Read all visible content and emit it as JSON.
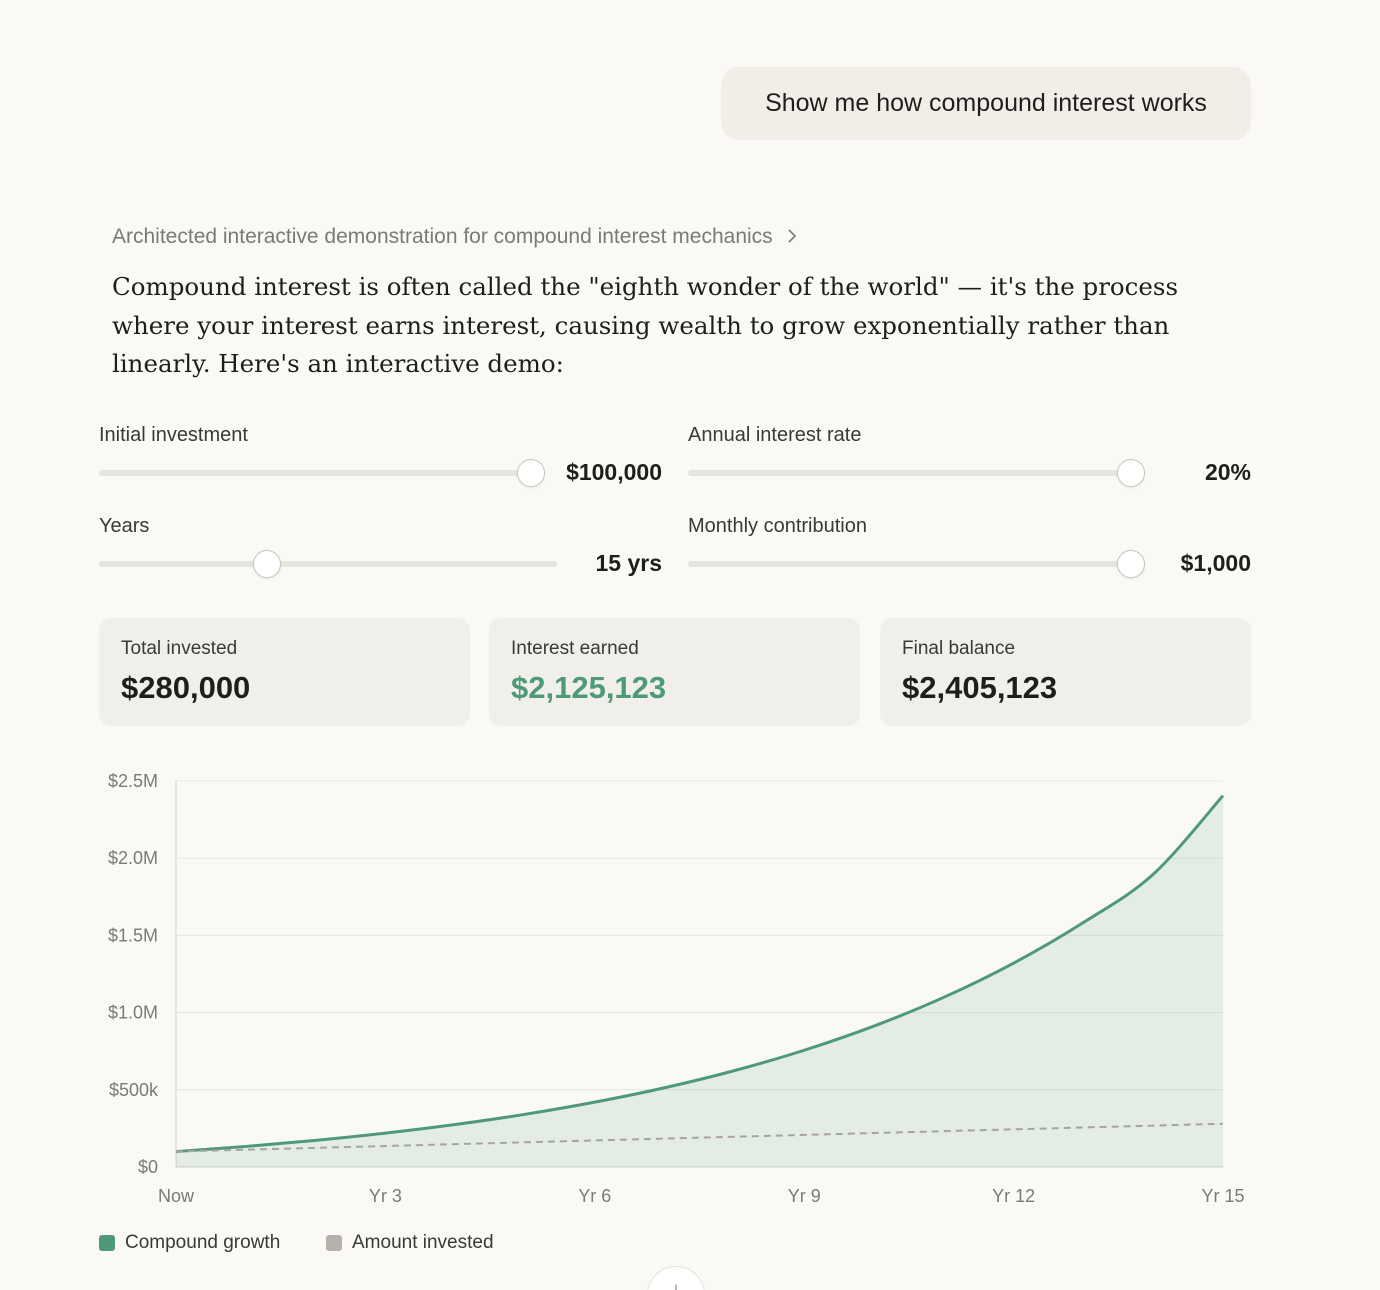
{
  "chat": {
    "user_message": "Show me how compound interest works",
    "thinking_summary": "Architected interactive demonstration for compound interest mechanics",
    "intro_text": "Compound interest is often called the \"eighth wonder of the world\" — it's the process where your interest earns interest, causing wealth to grow exponentially rather than linearly. Here's an interactive demo:"
  },
  "controls": {
    "initial_investment": {
      "label": "Initial investment",
      "value": "$100,000",
      "level": 1.0
    },
    "interest_rate": {
      "label": "Annual interest rate",
      "value": "20%",
      "level": 1.0
    },
    "years": {
      "label": "Years",
      "value": "15 yrs",
      "level": 0.37
    },
    "monthly_contribution": {
      "label": "Monthly contribution",
      "value": "$1,000",
      "level": 1.0
    }
  },
  "summary": {
    "total_invested": {
      "label": "Total invested",
      "value": "$280,000"
    },
    "interest_earned": {
      "label": "Interest earned",
      "value": "$2,125,123"
    },
    "final_balance": {
      "label": "Final balance",
      "value": "$2,405,123"
    }
  },
  "colors": {
    "accent_green": "#4e9a78",
    "invested_gray": "#a8a59e"
  },
  "chart_data": {
    "type": "area",
    "x_labels": [
      "Now",
      "Yr 3",
      "Yr 6",
      "Yr 9",
      "Yr 12",
      "Yr 15"
    ],
    "x": [
      0,
      1,
      2,
      3,
      4,
      5,
      6,
      7,
      8,
      9,
      10,
      11,
      12,
      13,
      14,
      15
    ],
    "y_ticks": [
      0,
      500000,
      1000000,
      1500000,
      2000000,
      2500000
    ],
    "y_tick_labels": [
      "$0",
      "$500k",
      "$1.0M",
      "$1.5M",
      "$2.0M",
      "$2.5M"
    ],
    "ylim": [
      0,
      2500000
    ],
    "grid": true,
    "legend_position": "bottom-left",
    "series": [
      {
        "name": "Compound growth",
        "style": "solid-line-with-fill",
        "values": [
          100000,
          133200,
          172600,
          219500,
          275200,
          341300,
          420000,
          513300,
          624200,
          756100,
          912800,
          1099000,
          1320300,
          1583400,
          1896000,
          2405123
        ]
      },
      {
        "name": "Amount invested",
        "style": "dashed-line",
        "values": [
          100000,
          112000,
          124000,
          136000,
          148000,
          160000,
          172000,
          184000,
          196000,
          208000,
          220000,
          232000,
          244000,
          256000,
          268000,
          280000
        ]
      }
    ]
  }
}
